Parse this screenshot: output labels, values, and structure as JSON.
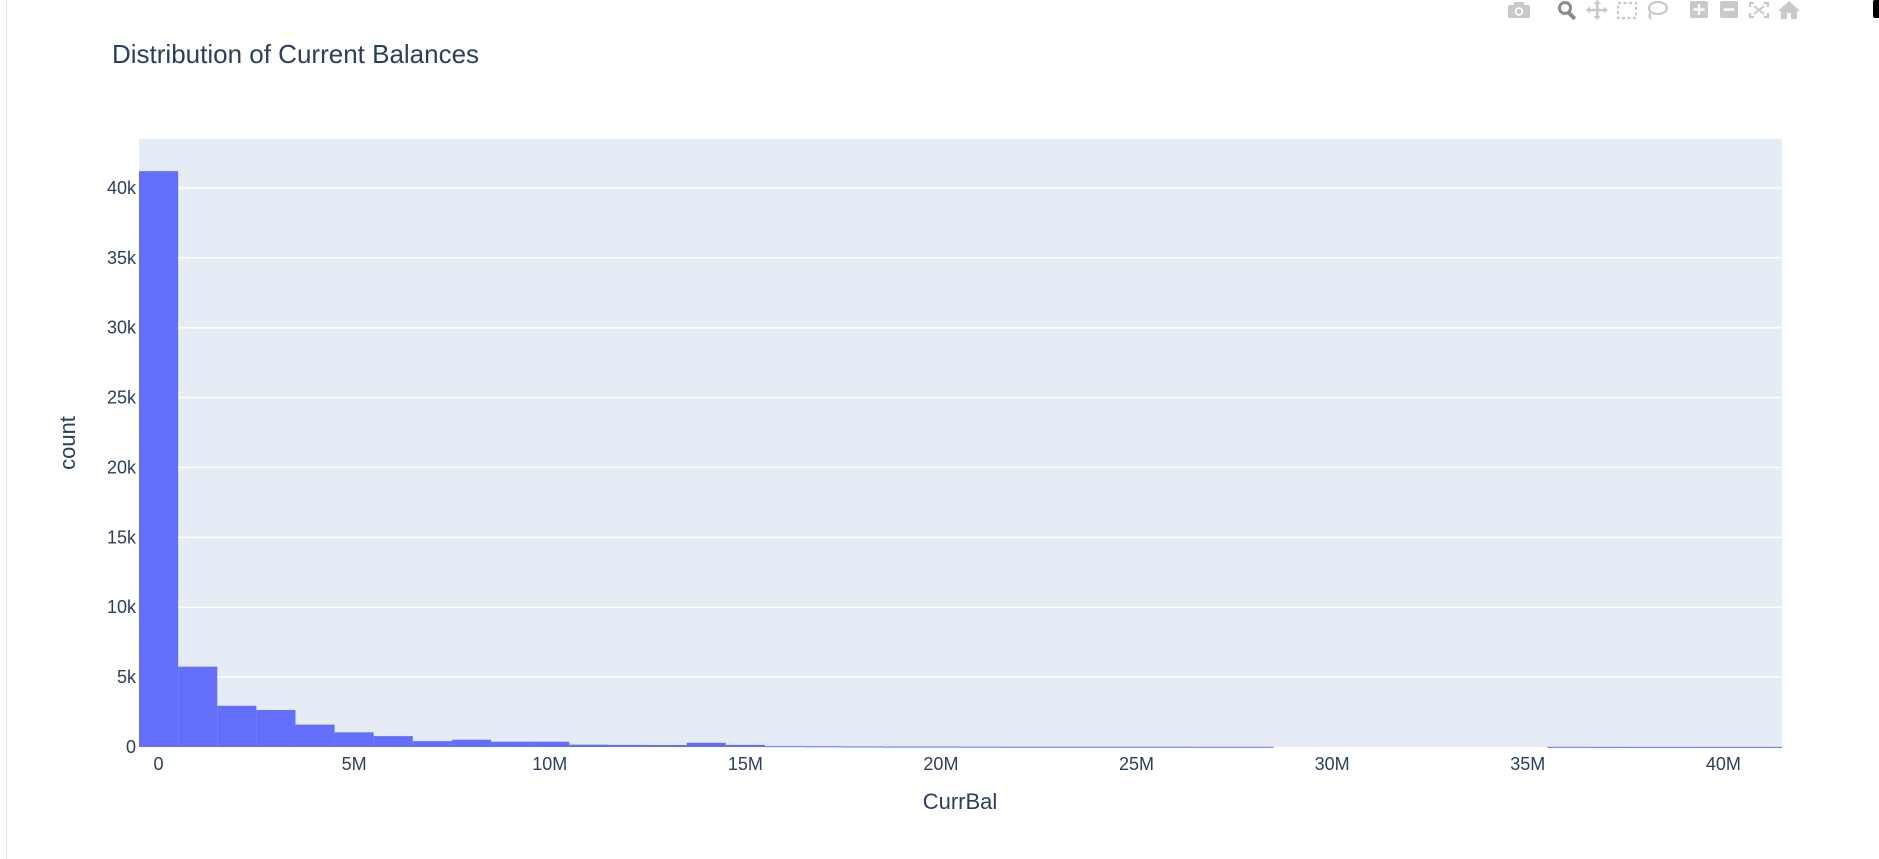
{
  "chart_data": {
    "type": "bar",
    "title": "Distribution of Current Balances",
    "xlabel": "CurrBal",
    "ylabel": "count",
    "bin_width": 1000000,
    "x_start": -500000,
    "xlim": [
      -500000,
      41500000
    ],
    "ylim": [
      0,
      43500
    ],
    "x_ticks": [
      {
        "value": 0,
        "label": "0"
      },
      {
        "value": 5000000,
        "label": "5M"
      },
      {
        "value": 10000000,
        "label": "10M"
      },
      {
        "value": 15000000,
        "label": "15M"
      },
      {
        "value": 20000000,
        "label": "20M"
      },
      {
        "value": 25000000,
        "label": "25M"
      },
      {
        "value": 30000000,
        "label": "30M"
      },
      {
        "value": 35000000,
        "label": "35M"
      },
      {
        "value": 40000000,
        "label": "40M"
      }
    ],
    "y_ticks": [
      {
        "value": 0,
        "label": "0"
      },
      {
        "value": 5000,
        "label": "5k"
      },
      {
        "value": 10000,
        "label": "10k"
      },
      {
        "value": 15000,
        "label": "15k"
      },
      {
        "value": 20000,
        "label": "20k"
      },
      {
        "value": 25000,
        "label": "25k"
      },
      {
        "value": 30000,
        "label": "30k"
      },
      {
        "value": 35000,
        "label": "35k"
      },
      {
        "value": 40000,
        "label": "40k"
      }
    ],
    "values": [
      41200,
      5750,
      2950,
      2650,
      1600,
      1050,
      780,
      420,
      520,
      380,
      380,
      170,
      150,
      140,
      300,
      150,
      60,
      50,
      40,
      30,
      30,
      25,
      20,
      20,
      20,
      20,
      20,
      15,
      15,
      0,
      0,
      0,
      0,
      0,
      0,
      0,
      15,
      12,
      10,
      10,
      8,
      8
    ],
    "bar_color": "#636efa",
    "plot_bg": "#e5ecf6",
    "grid_color": "#ffffff",
    "text_color": "#2a3f5f",
    "grid": true
  },
  "modebar": {
    "buttons": [
      {
        "name": "camera-icon"
      },
      {
        "name": "zoom-icon"
      },
      {
        "name": "pan-icon"
      },
      {
        "name": "box-select-icon"
      },
      {
        "name": "lasso-icon"
      },
      {
        "name": "zoom-in-icon"
      },
      {
        "name": "zoom-out-icon"
      },
      {
        "name": "autoscale-icon"
      },
      {
        "name": "reset-axes-icon"
      }
    ],
    "icon_color": "#c9c9c9",
    "active_color": "#8a8a8a"
  }
}
